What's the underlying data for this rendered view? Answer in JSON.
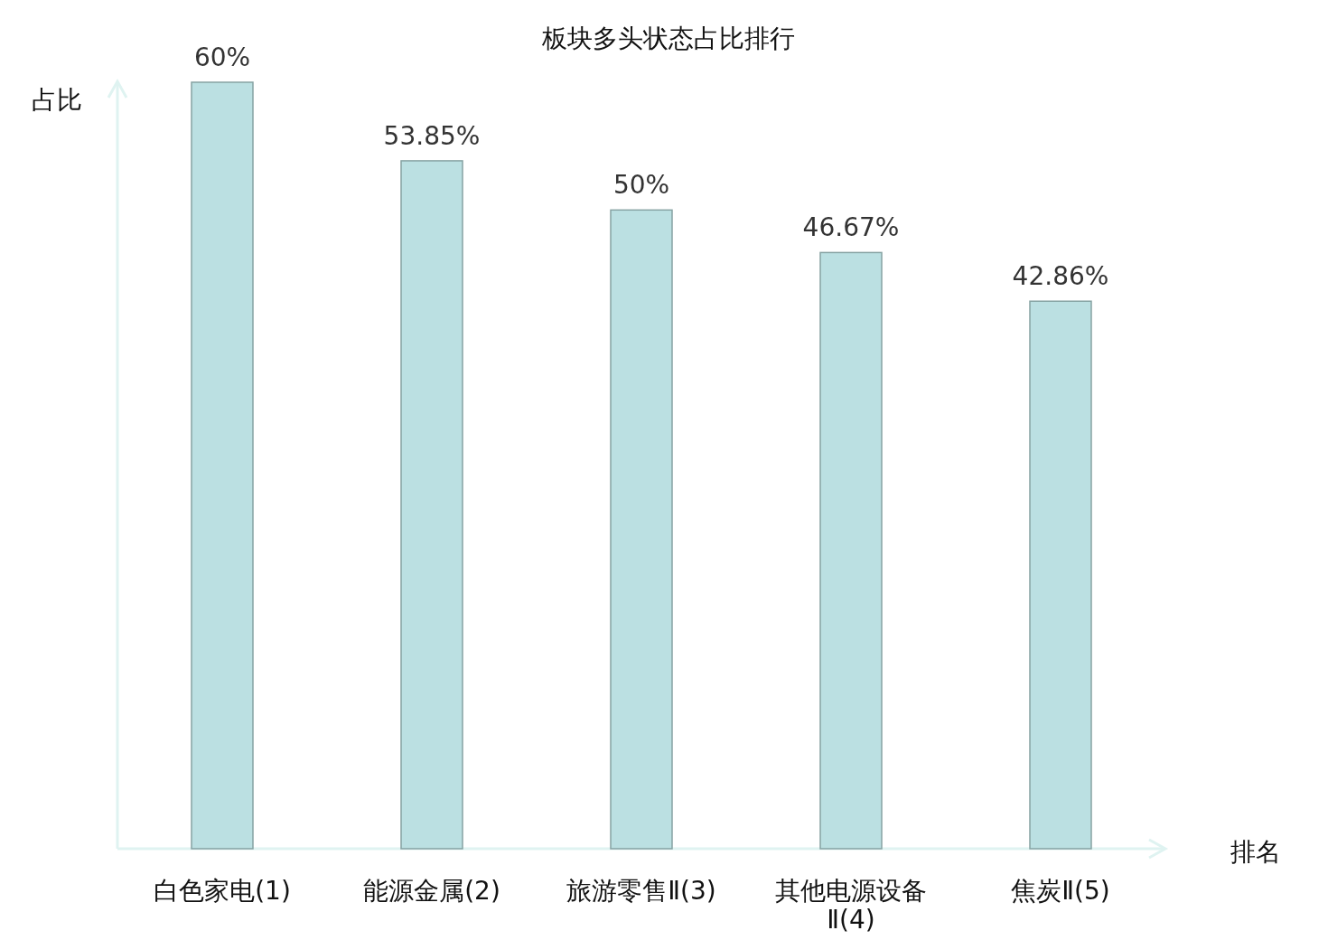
{
  "chart_data": {
    "type": "bar",
    "title": "板块多头状态占比排行",
    "xlabel": "排名",
    "ylabel": "占比",
    "categories": [
      "白色家电(1)",
      "能源金属(2)",
      "旅游零售Ⅱ(3)",
      "其他电源设备Ⅱ(4)",
      "焦炭Ⅱ(5)"
    ],
    "values": [
      60,
      53.85,
      50,
      46.67,
      42.86
    ],
    "value_labels": [
      "60%",
      "53.85%",
      "50%",
      "46.67%",
      "42.86%"
    ],
    "color": "#bbe0e2",
    "ylim": [
      0,
      60
    ],
    "grid": false
  }
}
